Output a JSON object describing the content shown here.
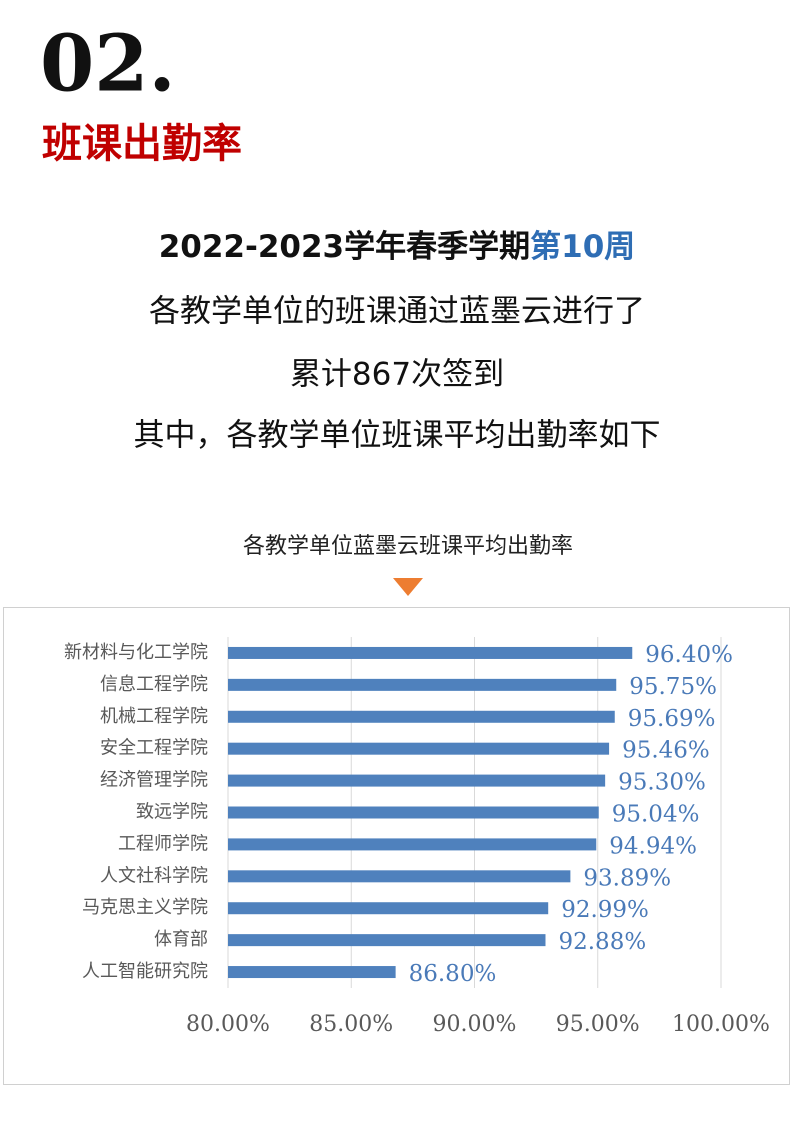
{
  "header": {
    "number": "02.",
    "title": "班课出勤率"
  },
  "intro": {
    "line1": "2022-2023学年春季学期",
    "week": "第10周",
    "line2": "各教学单位的班课通过蓝墨云进行了",
    "line3": "累计867次签到",
    "line4": "其中，各教学单位班课平均出勤率如下"
  },
  "chart_data": {
    "type": "hbar",
    "title": "各教学单位蓝墨云班课平均出勤率",
    "categories": [
      "新材料与化工学院",
      "信息工程学院",
      "机械工程学院",
      "安全工程学院",
      "经济管理学院",
      "致远学院",
      "工程师学院",
      "人文社科学院",
      "马克思主义学院",
      "体育部",
      "人工智能研究院"
    ],
    "values": [
      96.4,
      95.75,
      95.69,
      95.46,
      95.3,
      95.04,
      94.94,
      93.89,
      92.99,
      92.88,
      86.8
    ],
    "value_labels": [
      "96.40%",
      "95.75%",
      "95.69%",
      "95.46%",
      "95.30%",
      "95.04%",
      "94.94%",
      "93.89%",
      "92.99%",
      "92.88%",
      "86.80%"
    ],
    "color": "#4f81bd",
    "xlim": [
      80,
      100
    ],
    "xticks": [
      {
        "value": 80,
        "label": "80.00%"
      },
      {
        "value": 85,
        "label": "85.00%"
      },
      {
        "value": 90,
        "label": "90.00%"
      },
      {
        "value": 95,
        "label": "95.00%"
      },
      {
        "value": 100,
        "label": "100.00%"
      }
    ],
    "grid": true
  }
}
